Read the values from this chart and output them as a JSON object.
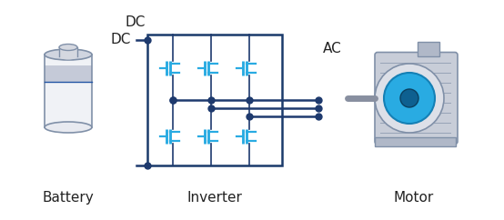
{
  "background_color": "#ffffff",
  "title": "",
  "labels": {
    "battery": "Battery",
    "inverter": "Inverter",
    "motor": "Motor",
    "dc": "DC",
    "ac": "AC"
  },
  "colors": {
    "dark_blue": "#1a3a6b",
    "mid_blue": "#2255a4",
    "light_blue": "#29abe2",
    "cyan": "#00adef",
    "gray_light": "#d8dde6",
    "gray_mid": "#b0b8c8",
    "gray_dark": "#8090a8",
    "white": "#ffffff",
    "line_dark": "#1e3a6e",
    "transistor_cyan": "#29abe2",
    "dot_dark": "#1e3a6e"
  },
  "font_size_label": 11,
  "fig_width": 5.54,
  "fig_height": 2.42
}
